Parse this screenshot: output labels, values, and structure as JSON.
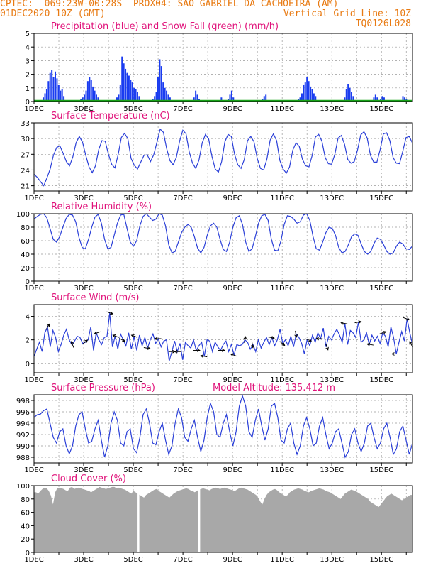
{
  "header": {
    "line1_left": "CPTEC:  069:23W-00:28S  PROX04: SAO GABRIEL DA CACHOEIRA (AM)",
    "line2_left": "01DEC2020 10Z (GMT)",
    "line2_right": "Vertical Grid Line: 10Z",
    "line3_right": "TQ0126L028"
  },
  "colors": {
    "header": "#e87a12",
    "title": "#e0127a",
    "precip": "#1a3cf0",
    "snow": "#19a319",
    "line": "#2a3fd8",
    "cloud": "#a8a8a8",
    "grid": "#999999"
  },
  "x_axis": {
    "ticks": [
      "1DEC",
      "3DEC",
      "5DEC",
      "7DEC",
      "9DEC",
      "11DEC",
      "13DEC",
      "15DEC"
    ],
    "range_days": [
      0,
      15.25
    ]
  },
  "chart_data": [
    {
      "type": "bar",
      "id": "precip",
      "title": "Precipitation (blue) and Snow Fall (green) (mm/h)",
      "ylim": [
        0,
        5
      ],
      "yticks": [
        "0",
        "1",
        "2",
        "3",
        "4",
        "5"
      ],
      "series": [
        {
          "name": "Precipitation",
          "color": "blue",
          "values": [
            0,
            0,
            0,
            0,
            0,
            0.3,
            0.6,
            0.9,
            1.5,
            2.1,
            2.3,
            1.8,
            2.2,
            1.7,
            1.2,
            0.8,
            0.9,
            0.4,
            0,
            0,
            0,
            0,
            0,
            0,
            0,
            0,
            0,
            0.2,
            0.3,
            0.5,
            0.8,
            1.5,
            1.8,
            1.6,
            1.1,
            0.8,
            0.5,
            0.3,
            0,
            0,
            0,
            0,
            0,
            0,
            0,
            0,
            0,
            0,
            0.3,
            0.5,
            1.2,
            3.3,
            2.8,
            2.4,
            2.1,
            1.9,
            1.6,
            1.4,
            1.0,
            0.9,
            0.7,
            0.4,
            0,
            0,
            0,
            0,
            0,
            0,
            0,
            0.2,
            0.4,
            0.7,
            1.8,
            3.1,
            2.6,
            1.4,
            1.0,
            0.8,
            0.5,
            0.3,
            0,
            0,
            0,
            0,
            0,
            0,
            0,
            0,
            0,
            0,
            0,
            0,
            0,
            0.3,
            0.8,
            0.5,
            0.2,
            0,
            0,
            0,
            0,
            0,
            0,
            0,
            0,
            0,
            0,
            0,
            0,
            0.3,
            0,
            0,
            0,
            0.2,
            0.5,
            0.8,
            0.3,
            0,
            0,
            0,
            0,
            0,
            0,
            0,
            0,
            0,
            0,
            0,
            0,
            0,
            0,
            0,
            0,
            0.2,
            0.4,
            0.5,
            0,
            0,
            0,
            0,
            0,
            0,
            0,
            0,
            0,
            0,
            0,
            0,
            0,
            0,
            0,
            0,
            0,
            0,
            0.2,
            0.3,
            0.6,
            1.2,
            1.4,
            1.8,
            1.5,
            1.1,
            0.9,
            0.6,
            0.4,
            0,
            0,
            0,
            0,
            0,
            0,
            0,
            0,
            0,
            0,
            0,
            0,
            0,
            0,
            0,
            0,
            0.3,
            0.9,
            1.3,
            1.0,
            0.7,
            0.4,
            0,
            0,
            0,
            0,
            0,
            0,
            0,
            0,
            0,
            0,
            0,
            0.3,
            0.5,
            0.3,
            0,
            0.2,
            0.4,
            0.3,
            0,
            0,
            0,
            0,
            0,
            0,
            0,
            0,
            0,
            0,
            0.4,
            0.3,
            0.2,
            0,
            0,
            0
          ]
        },
        {
          "name": "Snow Fall",
          "color": "green",
          "values": []
        }
      ]
    },
    {
      "type": "line",
      "id": "temp",
      "title": "Surface Temperature (nC)",
      "ylim": [
        20,
        33
      ],
      "yticks": [
        "21",
        "24",
        "27",
        "30",
        "33"
      ],
      "series": [
        {
          "name": "",
          "values": [
            23.2,
            22.6,
            21.8,
            21.0,
            22.5,
            24.2,
            26.8,
            28.3,
            28.6,
            27.2,
            25.6,
            24.8,
            26.5,
            29.2,
            30.4,
            29.3,
            26.8,
            24.6,
            23.5,
            24.8,
            27.9,
            29.6,
            29.5,
            27.0,
            25.1,
            24.4,
            26.9,
            30.2,
            31.0,
            30.0,
            26.2,
            24.9,
            24.2,
            25.5,
            26.8,
            26.9,
            25.6,
            26.9,
            29.3,
            31.8,
            31.2,
            28.1,
            25.8,
            25.0,
            26.4,
            29.5,
            31.6,
            30.9,
            27.4,
            25.3,
            24.3,
            25.9,
            29.2,
            30.8,
            29.9,
            26.6,
            24.2,
            23.6,
            25.6,
            29.4,
            30.8,
            30.4,
            27.0,
            25.0,
            24.3,
            26.0,
            29.6,
            30.4,
            29.4,
            26.2,
            24.3,
            24.0,
            26.1,
            29.7,
            30.9,
            29.6,
            25.8,
            24.2,
            23.4,
            24.6,
            27.8,
            29.2,
            28.5,
            26.0,
            24.8,
            24.6,
            26.8,
            30.3,
            30.8,
            29.5,
            26.4,
            25.2,
            25.1,
            27.0,
            30.1,
            30.6,
            28.9,
            26.0,
            25.3,
            25.6,
            27.8,
            30.7,
            31.3,
            30.1,
            26.8,
            25.5,
            25.5,
            27.9,
            30.9,
            31.1,
            29.6,
            26.4,
            25.3,
            25.2,
            27.6,
            30.2,
            30.4,
            29.1
          ]
        }
      ]
    },
    {
      "type": "line",
      "id": "rh",
      "title": "Relative Humidity (%)",
      "ylim": [
        0,
        100
      ],
      "yticks": [
        "0",
        "20",
        "40",
        "60",
        "80",
        "100"
      ],
      "series": [
        {
          "name": "",
          "values": [
            92,
            96,
            99,
            100,
            94,
            78,
            62,
            58,
            66,
            80,
            93,
            99,
            98,
            88,
            65,
            50,
            48,
            62,
            80,
            95,
            99,
            86,
            62,
            48,
            50,
            68,
            86,
            98,
            99,
            78,
            58,
            52,
            60,
            82,
            96,
            100,
            95,
            90,
            92,
            100,
            98,
            82,
            54,
            42,
            44,
            58,
            72,
            80,
            84,
            80,
            66,
            49,
            42,
            50,
            68,
            82,
            86,
            80,
            62,
            47,
            44,
            58,
            80,
            94,
            97,
            84,
            58,
            44,
            48,
            66,
            86,
            97,
            99,
            90,
            62,
            46,
            45,
            60,
            84,
            97,
            96,
            92,
            86,
            88,
            98,
            100,
            90,
            66,
            48,
            46,
            58,
            72,
            80,
            78,
            68,
            50,
            42,
            44,
            54,
            66,
            70,
            68,
            55,
            44,
            40,
            44,
            56,
            64,
            62,
            54,
            44,
            40,
            42,
            52,
            58,
            55,
            48,
            47,
            52
          ]
        }
      ]
    },
    {
      "type": "line",
      "id": "wind",
      "title": "Surface Wind (m/s)",
      "ylim": [
        -0.8,
        5
      ],
      "yticks": [
        "0",
        "2",
        "4"
      ],
      "series": [
        {
          "name": "",
          "values": [
            0.6,
            1.2,
            1.8,
            1.0,
            2.6,
            3.1,
            1.4,
            2.8,
            2.2,
            1.0,
            1.6,
            2.4,
            2.9,
            2.0,
            1.6,
            1.9,
            2.3,
            2.2,
            1.7,
            1.8,
            2.0,
            3.1,
            1.1,
            2.6,
            2.0,
            1.6,
            2.2,
            2.3,
            4.3,
            1.4,
            2.3,
            1.2,
            2.5,
            2.0,
            1.5,
            2.6,
            1.2,
            2.3,
            1.1,
            2.4,
            1.5,
            2.2,
            1.3,
            2.0,
            2.5,
            1.7,
            2.1,
            1.4,
            1.9,
            2.0,
            0.2,
            1.0,
            1.9,
            1.0,
            1.7,
            0.3,
            1.8,
            1.5,
            1.3,
            2.0,
            1.1,
            1.5,
            1.8,
            0.6,
            2.0,
            1.9,
            1.0,
            1.8,
            1.4,
            1.1,
            1.6,
            1.9,
            1.0,
            1.6,
            0.7,
            1.6,
            1.5,
            1.6,
            2.0,
            1.8,
            1.2,
            1.6,
            1.0,
            2.0,
            1.3,
            1.8,
            2.2,
            1.6,
            2.2,
            1.5,
            2.0,
            2.9,
            1.7,
            2.0,
            1.5,
            2.3,
            1.4,
            2.5,
            2.2,
            1.7,
            0.8,
            2.0,
            1.5,
            2.4,
            1.8,
            2.6,
            2.1,
            3.0,
            1.4,
            2.3,
            2.0,
            2.5,
            2.9,
            2.4,
            1.8,
            3.4,
            1.6,
            2.8,
            2.6,
            2.2,
            3.5,
            1.8,
            2.0,
            2.6,
            1.6,
            2.4,
            1.9,
            2.3,
            1.7,
            2.6,
            2.3,
            1.4,
            3.1,
            2.2,
            0.8,
            1.8,
            2.7,
            1.9,
            3.8,
            2.6,
            1.6
          ]
        }
      ]
    },
    {
      "type": "line",
      "id": "pres",
      "title": "Surface Pressure (hPa)",
      "annotation": "Model Altitude: 135.412  m",
      "ylim": [
        987,
        999
      ],
      "yticks": [
        "988",
        "990",
        "992",
        "994",
        "996",
        "998"
      ],
      "series": [
        {
          "name": "",
          "values": [
            995.0,
            995.5,
            995.6,
            996.2,
            996.5,
            994.0,
            991.5,
            990.5,
            992.5,
            993.0,
            990.0,
            988.6,
            990.0,
            993.5,
            995.5,
            996.0,
            993.0,
            990.5,
            990.8,
            993.0,
            994.5,
            991.0,
            988.0,
            990.0,
            994.0,
            996.0,
            994.5,
            990.5,
            990.0,
            992.5,
            993.0,
            989.5,
            988.8,
            991.5,
            995.5,
            996.5,
            994.0,
            990.5,
            990.2,
            992.5,
            994.0,
            991.0,
            988.5,
            990.0,
            994.0,
            996.5,
            995.0,
            991.5,
            990.8,
            993.0,
            994.5,
            991.5,
            989.0,
            991.0,
            995.0,
            997.5,
            996.0,
            992.0,
            991.5,
            994.0,
            995.5,
            992.5,
            990.0,
            992.5,
            997.0,
            998.8,
            997.0,
            992.5,
            991.5,
            994.5,
            996.5,
            993.5,
            991.0,
            993.0,
            997.0,
            997.5,
            995.0,
            991.0,
            990.5,
            993.0,
            994.0,
            990.5,
            988.5,
            990.0,
            993.5,
            995.0,
            993.0,
            990.0,
            990.5,
            993.5,
            995.0,
            992.0,
            989.5,
            990.5,
            992.5,
            993.0,
            990.5,
            988.0,
            989.0,
            992.0,
            993.0,
            990.5,
            989.0,
            990.5,
            993.5,
            994.0,
            991.5,
            989.5,
            990.5,
            993.0,
            994.0,
            991.5,
            988.5,
            989.5,
            992.5,
            993.5,
            991.0,
            988.5,
            990.5
          ]
        }
      ]
    },
    {
      "type": "area",
      "id": "cloud",
      "title": "Cloud Cover (%)",
      "ylim": [
        0,
        100
      ],
      "yticks": [
        "0",
        "20",
        "40",
        "60",
        "80",
        "100"
      ],
      "series": [
        {
          "name": "",
          "values": [
            90,
            90,
            88,
            92,
            95,
            97,
            96,
            92,
            85,
            72,
            90,
            96,
            97,
            96,
            95,
            93,
            92,
            97,
            98,
            95,
            96,
            97,
            96,
            95,
            94,
            93,
            92,
            90,
            92,
            94,
            96,
            98,
            97,
            96,
            95,
            96,
            97,
            98,
            98,
            96,
            97,
            96,
            95,
            94,
            92,
            90,
            88,
            92,
            90,
            88,
            86,
            84,
            82,
            86,
            88,
            90,
            92,
            94,
            95,
            92,
            90,
            88,
            86,
            84,
            82,
            85,
            88,
            90,
            92,
            93,
            94,
            95,
            96,
            95,
            93,
            92,
            90,
            92,
            94,
            95,
            96,
            95,
            94,
            93,
            95,
            96,
            97,
            96,
            95,
            96,
            97,
            96,
            95,
            94,
            93,
            92,
            94,
            96,
            97,
            96,
            95,
            94,
            92,
            90,
            88,
            86,
            82,
            76,
            72,
            80,
            86,
            90,
            92,
            94,
            95,
            93,
            90,
            88,
            86,
            84,
            86,
            90,
            92,
            94,
            95,
            96,
            95,
            94,
            92,
            91,
            90,
            92,
            93,
            94,
            95,
            96,
            95,
            94,
            92,
            91,
            90,
            88,
            86,
            84,
            82,
            80,
            84,
            88,
            90,
            92,
            94,
            93,
            92,
            90,
            88,
            86,
            84,
            82,
            80,
            76,
            74,
            72,
            70,
            68,
            72,
            76,
            80,
            84,
            86,
            88,
            86,
            84,
            82,
            80,
            78,
            80,
            82,
            84,
            86,
            86
          ]
        }
      ],
      "dips": [
        {
          "x": 4.2,
          "value": 0
        },
        {
          "x": 6.65,
          "value": 0
        }
      ]
    }
  ],
  "wind_arrows": [
    {
      "x": 0.55,
      "angle": -60
    },
    {
      "x": 1.55,
      "angle": -110
    },
    {
      "x": 2.05,
      "angle": -40
    },
    {
      "x": 2.55,
      "angle": 160
    },
    {
      "x": 3.05,
      "angle": 20
    },
    {
      "x": 3.3,
      "angle": 200
    },
    {
      "x": 3.55,
      "angle": 30
    },
    {
      "x": 4.05,
      "angle": 200
    },
    {
      "x": 4.55,
      "angle": 10
    },
    {
      "x": 5.0,
      "angle": 180
    },
    {
      "x": 5.55,
      "angle": 0
    },
    {
      "x": 5.8,
      "angle": 180
    },
    {
      "x": 6.55,
      "angle": 0
    },
    {
      "x": 6.85,
      "angle": 190
    },
    {
      "x": 7.55,
      "angle": 0
    },
    {
      "x": 8.05,
      "angle": 200
    },
    {
      "x": 8.5,
      "angle": -80
    },
    {
      "x": 8.8,
      "angle": 80
    },
    {
      "x": 9.55,
      "angle": 10
    },
    {
      "x": 10.0,
      "angle": 40
    },
    {
      "x": 10.55,
      "angle": 80
    },
    {
      "x": 11.05,
      "angle": 20
    },
    {
      "x": 11.5,
      "angle": 180
    },
    {
      "x": 11.8,
      "angle": 70
    },
    {
      "x": 12.5,
      "angle": 190
    },
    {
      "x": 13.05,
      "angle": -10
    },
    {
      "x": 13.55,
      "angle": 190
    },
    {
      "x": 14.05,
      "angle": -20
    },
    {
      "x": 14.55,
      "angle": 180
    },
    {
      "x": 15.0,
      "angle": 20
    },
    {
      "x": 15.2,
      "angle": -120
    }
  ]
}
